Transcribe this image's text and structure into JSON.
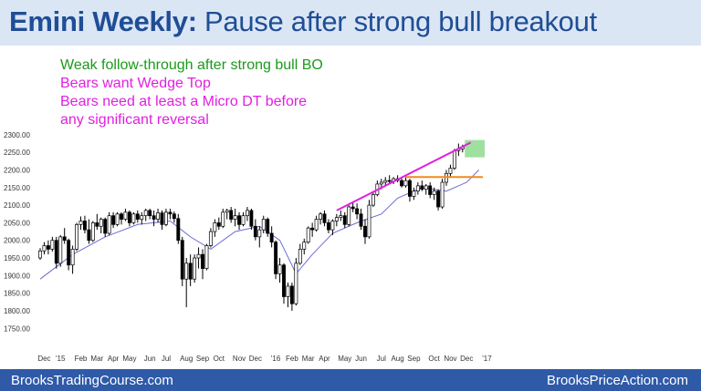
{
  "header": {
    "title_bold": "Emini Weekly:",
    "title_rest": "Pause after strong bull breakout"
  },
  "notes": [
    {
      "text": "Weak follow-through after strong bull BO",
      "color": "#1a9a1a"
    },
    {
      "text": "Bears want Wedge Top",
      "color": "#e020e0"
    },
    {
      "text": "Bears need at least a Micro DT before",
      "color": "#e020e0"
    },
    {
      "text": "any significant reversal",
      "color": "#e020e0"
    }
  ],
  "footer": {
    "left": "BrooksTradingCourse.com",
    "right": "BrooksPriceAction.com"
  },
  "chart_data": {
    "type": "candlestick",
    "ylim": [
      1730,
      2310
    ],
    "y_ticks": [
      1750,
      1800,
      1850,
      1900,
      1950,
      2000,
      2050,
      2100,
      2150,
      2200,
      2250,
      2300
    ],
    "x_ticks": [
      {
        "label": "Dec",
        "i": 1
      },
      {
        "label": "'15",
        "i": 5
      },
      {
        "label": "Feb",
        "i": 10
      },
      {
        "label": "Mar",
        "i": 14
      },
      {
        "label": "Apr",
        "i": 18
      },
      {
        "label": "May",
        "i": 22
      },
      {
        "label": "Jun",
        "i": 27
      },
      {
        "label": "Jul",
        "i": 31
      },
      {
        "label": "Aug",
        "i": 36
      },
      {
        "label": "Sep",
        "i": 40
      },
      {
        "label": "Oct",
        "i": 44
      },
      {
        "label": "Nov",
        "i": 49
      },
      {
        "label": "Dec",
        "i": 53
      },
      {
        "label": "'16",
        "i": 58
      },
      {
        "label": "Feb",
        "i": 62
      },
      {
        "label": "Mar",
        "i": 66
      },
      {
        "label": "Apr",
        "i": 70
      },
      {
        "label": "May",
        "i": 75
      },
      {
        "label": "Jun",
        "i": 79
      },
      {
        "label": "Jul",
        "i": 84
      },
      {
        "label": "Aug",
        "i": 88
      },
      {
        "label": "Sep",
        "i": 92
      },
      {
        "label": "Oct",
        "i": 97
      },
      {
        "label": "Nov",
        "i": 101
      },
      {
        "label": "Dec",
        "i": 105
      },
      {
        "label": "'17",
        "i": 110
      }
    ],
    "candles": [
      [
        1950,
        1978,
        1945,
        1970
      ],
      [
        1970,
        1995,
        1960,
        1985
      ],
      [
        1985,
        2000,
        1960,
        1975
      ],
      [
        1975,
        2010,
        1968,
        2000
      ],
      [
        2000,
        2010,
        1920,
        1935
      ],
      [
        1935,
        2015,
        1925,
        2010
      ],
      [
        2010,
        2035,
        1990,
        2000
      ],
      [
        2000,
        2005,
        1915,
        1930
      ],
      [
        1930,
        1985,
        1905,
        1975
      ],
      [
        1975,
        2050,
        1970,
        2045
      ],
      [
        2045,
        2068,
        2030,
        2055
      ],
      [
        2055,
        2070,
        2020,
        2030
      ],
      [
        2030,
        2060,
        1990,
        2000
      ],
      [
        2000,
        2055,
        1995,
        2050
      ],
      [
        2050,
        2075,
        2030,
        2040
      ],
      [
        2040,
        2065,
        2020,
        2060
      ],
      [
        2060,
        2065,
        2010,
        2020
      ],
      [
        2020,
        2080,
        2015,
        2070
      ],
      [
        2070,
        2080,
        2035,
        2045
      ],
      [
        2045,
        2080,
        2040,
        2075
      ],
      [
        2075,
        2080,
        2045,
        2060
      ],
      [
        2060,
        2090,
        2055,
        2080
      ],
      [
        2080,
        2085,
        2040,
        2050
      ],
      [
        2050,
        2080,
        2045,
        2075
      ],
      [
        2075,
        2085,
        2050,
        2060
      ],
      [
        2060,
        2080,
        2045,
        2070
      ],
      [
        2070,
        2090,
        2055,
        2085
      ],
      [
        2085,
        2090,
        2060,
        2070
      ],
      [
        2070,
        2085,
        2040,
        2060
      ],
      [
        2060,
        2090,
        2050,
        2078
      ],
      [
        2078,
        2085,
        2030,
        2045
      ],
      [
        2045,
        2090,
        2040,
        2080
      ],
      [
        2080,
        2090,
        2060,
        2075
      ],
      [
        2075,
        2082,
        2050,
        2062
      ],
      [
        2062,
        2075,
        1990,
        2000
      ],
      [
        2000,
        2010,
        1870,
        1890
      ],
      [
        1890,
        1950,
        1810,
        1935
      ],
      [
        1935,
        1960,
        1870,
        1890
      ],
      [
        1890,
        1960,
        1880,
        1950
      ],
      [
        1950,
        1980,
        1920,
        1960
      ],
      [
        1960,
        1975,
        1890,
        1920
      ],
      [
        1920,
        1990,
        1915,
        1985
      ],
      [
        1985,
        2035,
        1980,
        2025
      ],
      [
        2025,
        2060,
        2010,
        2050
      ],
      [
        2050,
        2065,
        2030,
        2040
      ],
      [
        2040,
        2090,
        2035,
        2080
      ],
      [
        2080,
        2090,
        2060,
        2085
      ],
      [
        2085,
        2095,
        2050,
        2060
      ],
      [
        2060,
        2090,
        2040,
        2070
      ],
      [
        2070,
        2080,
        2030,
        2045
      ],
      [
        2045,
        2080,
        2040,
        2070
      ],
      [
        2070,
        2095,
        2055,
        2085
      ],
      [
        2085,
        2090,
        2030,
        2040
      ],
      [
        2040,
        2060,
        2000,
        2010
      ],
      [
        2010,
        2040,
        1980,
        2030
      ],
      [
        2030,
        2070,
        2020,
        2060
      ],
      [
        2060,
        2065,
        2010,
        2020
      ],
      [
        2020,
        2040,
        1980,
        1995
      ],
      [
        1995,
        2000,
        1890,
        1905
      ],
      [
        1905,
        1950,
        1880,
        1930
      ],
      [
        1930,
        1935,
        1820,
        1840
      ],
      [
        1840,
        1880,
        1810,
        1870
      ],
      [
        1870,
        1880,
        1800,
        1820
      ],
      [
        1820,
        1950,
        1815,
        1935
      ],
      [
        1935,
        1990,
        1930,
        1975
      ],
      [
        1975,
        2005,
        1960,
        1995
      ],
      [
        1995,
        2040,
        1990,
        2035
      ],
      [
        2035,
        2050,
        2010,
        2030
      ],
      [
        2030,
        2070,
        2025,
        2060
      ],
      [
        2060,
        2080,
        2045,
        2075
      ],
      [
        2075,
        2085,
        2040,
        2050
      ],
      [
        2050,
        2060,
        2020,
        2030
      ],
      [
        2030,
        2060,
        2015,
        2055
      ],
      [
        2055,
        2075,
        2040,
        2065
      ],
      [
        2065,
        2085,
        2055,
        2070
      ],
      [
        2070,
        2080,
        2035,
        2045
      ],
      [
        2045,
        2100,
        2040,
        2095
      ],
      [
        2095,
        2110,
        2080,
        2090
      ],
      [
        2090,
        2105,
        2060,
        2075
      ],
      [
        2075,
        2090,
        2030,
        2040
      ],
      [
        2040,
        2060,
        1990,
        2010
      ],
      [
        2010,
        2115,
        2005,
        2100
      ],
      [
        2100,
        2140,
        2095,
        2130
      ],
      [
        2130,
        2170,
        2125,
        2160
      ],
      [
        2160,
        2175,
        2145,
        2165
      ],
      [
        2165,
        2180,
        2155,
        2170
      ],
      [
        2170,
        2185,
        2160,
        2168
      ],
      [
        2168,
        2180,
        2160,
        2175
      ],
      [
        2175,
        2185,
        2165,
        2170
      ],
      [
        2170,
        2180,
        2150,
        2155
      ],
      [
        2155,
        2180,
        2150,
        2170
      ],
      [
        2170,
        2175,
        2110,
        2125
      ],
      [
        2125,
        2150,
        2115,
        2140
      ],
      [
        2140,
        2165,
        2130,
        2155
      ],
      [
        2155,
        2170,
        2140,
        2145
      ],
      [
        2145,
        2160,
        2130,
        2155
      ],
      [
        2155,
        2165,
        2120,
        2130
      ],
      [
        2130,
        2150,
        2115,
        2140
      ],
      [
        2140,
        2145,
        2085,
        2095
      ],
      [
        2095,
        2175,
        2090,
        2165
      ],
      [
        2165,
        2200,
        2155,
        2190
      ],
      [
        2190,
        2215,
        2180,
        2205
      ],
      [
        2205,
        2260,
        2200,
        2255
      ],
      [
        2255,
        2275,
        2240,
        2260
      ],
      [
        2260,
        2272,
        2250,
        2265
      ]
    ],
    "ma": [
      [
        0,
        1890
      ],
      [
        8,
        1960
      ],
      [
        16,
        2010
      ],
      [
        24,
        2045
      ],
      [
        32,
        2055
      ],
      [
        37,
        2010
      ],
      [
        42,
        1975
      ],
      [
        48,
        2025
      ],
      [
        54,
        2040
      ],
      [
        59,
        2000
      ],
      [
        63,
        1905
      ],
      [
        67,
        1960
      ],
      [
        72,
        2020
      ],
      [
        78,
        2050
      ],
      [
        84,
        2075
      ],
      [
        88,
        2120
      ],
      [
        94,
        2150
      ],
      [
        100,
        2140
      ],
      [
        105,
        2165
      ],
      [
        108,
        2200
      ]
    ],
    "wedge_line": [
      [
        73,
        2085
      ],
      [
        106,
        2278
      ]
    ],
    "resistance_line": [
      [
        90,
        2180
      ],
      [
        109,
        2180
      ]
    ],
    "highlight": {
      "i0": 105,
      "i1": 109,
      "y0": 2236,
      "y1": 2285
    }
  }
}
